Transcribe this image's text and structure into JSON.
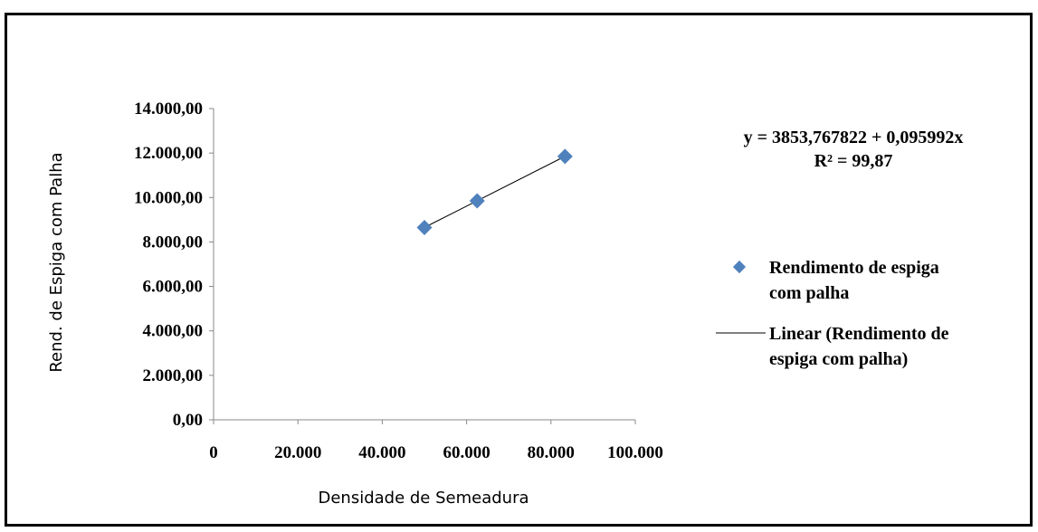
{
  "chart_data": {
    "type": "scatter",
    "xlabel": "Densidade de Semeadura",
    "ylabel": "Rend. de Espiga com Palha",
    "xlim": [
      0,
      100000
    ],
    "ylim": [
      0,
      14000
    ],
    "x_ticks": [
      "0",
      "20.000",
      "40.000",
      "60.000",
      "80.000",
      "100.000"
    ],
    "y_ticks": [
      "0,00",
      "2.000,00",
      "4.000,00",
      "6.000,00",
      "8.000,00",
      "10.000,00",
      "12.000,00",
      "14.000,00"
    ],
    "series": [
      {
        "name": "Rendimento de espiga com palha",
        "marker": "diamond",
        "color": "#4F81BD",
        "points": [
          {
            "x": 50000,
            "y": 8650
          },
          {
            "x": 62500,
            "y": 9850
          },
          {
            "x": 83333,
            "y": 11850
          }
        ]
      }
    ],
    "trendline": {
      "name": "Linear (Rendimento de espiga com palha)",
      "type": "linear",
      "intercept": 3853.767822,
      "slope": 0.095992,
      "x_range": [
        50000,
        83333
      ],
      "color": "#000000"
    },
    "annotations": {
      "equation": "y = 3853,767822 + 0,095992x",
      "r2": "R² = 99,87"
    },
    "legend": {
      "placement": "right",
      "series_label_lines": [
        "Rendimento de espiga",
        "com palha"
      ],
      "trend_label_lines": [
        "Linear (Rendimento de",
        "espiga com palha)"
      ]
    },
    "grid": false
  }
}
